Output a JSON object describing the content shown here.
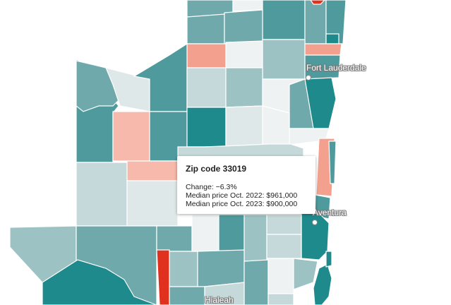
{
  "map": {
    "colors": {
      "teal_dark": "#1f8a8c",
      "teal": "#4e9a9c",
      "teal_mid": "#6fa9ab",
      "teal_light": "#9cc2c3",
      "gray_light": "#c6d9da",
      "gray_pale": "#dfe8e8",
      "white_gray": "#eef2f2",
      "salmon": "#f4a08e",
      "salmon_light": "#f6b9ab",
      "red": "#e0301e"
    },
    "cities": [
      {
        "name": "Fort Lauderdale"
      },
      {
        "name": "Aventura"
      },
      {
        "name": "Hialeah"
      }
    ]
  },
  "tooltip": {
    "title": "Zip code 33019",
    "change": "Change: −6.3%",
    "price_2022": "Median price Oct. 2022: $961,000",
    "price_2023": "Median price Oct. 2023: $900,000"
  }
}
